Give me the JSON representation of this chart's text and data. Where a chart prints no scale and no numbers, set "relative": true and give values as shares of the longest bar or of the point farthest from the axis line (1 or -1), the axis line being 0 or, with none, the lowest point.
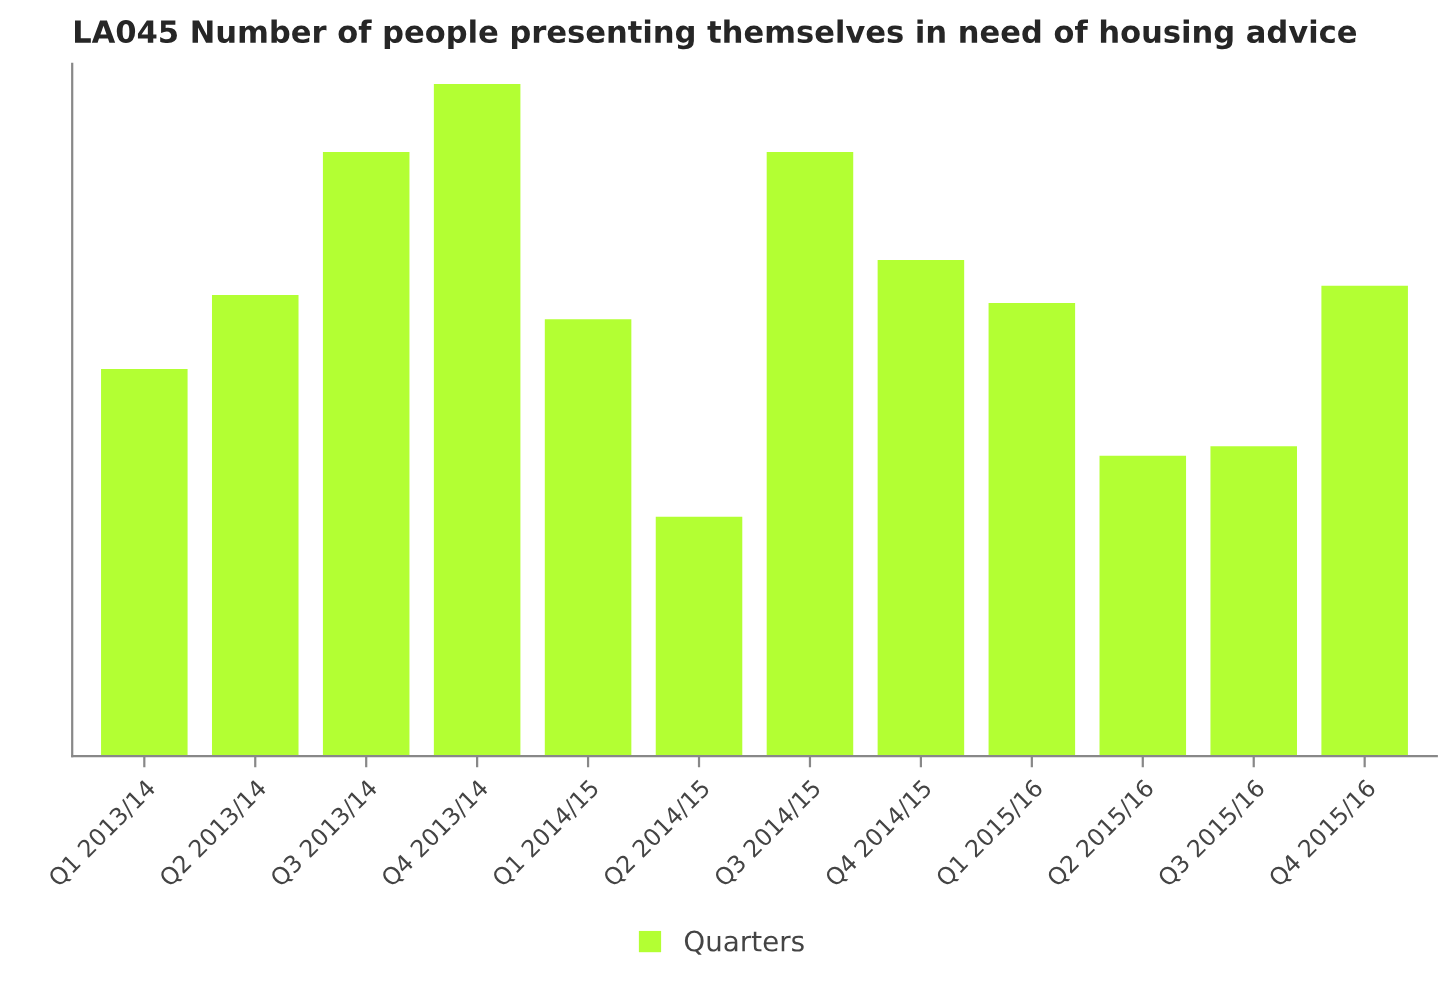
{
  "chart_data": {
    "type": "bar",
    "title": "LA045 Number of people presenting themselves in need of housing advice",
    "categories": [
      "Q1 2013/14",
      "Q2 2013/14",
      "Q3 2013/14",
      "Q4 2013/14",
      "Q1 2014/15",
      "Q2 2014/15",
      "Q3 2014/15",
      "Q4 2014/15",
      "Q1 2015/16",
      "Q2 2015/16",
      "Q3 2015/16",
      "Q4 2015/16"
    ],
    "series": [
      {
        "name": "Quarters",
        "color": "#b3ff33",
        "values": [
          0.576,
          0.686,
          0.899,
          1,
          0.65,
          0.356,
          0.899,
          0.738,
          0.674,
          0.447,
          0.461,
          0.7
        ]
      }
    ],
    "relative": true,
    "legend": "bottom",
    "grid": false
  }
}
